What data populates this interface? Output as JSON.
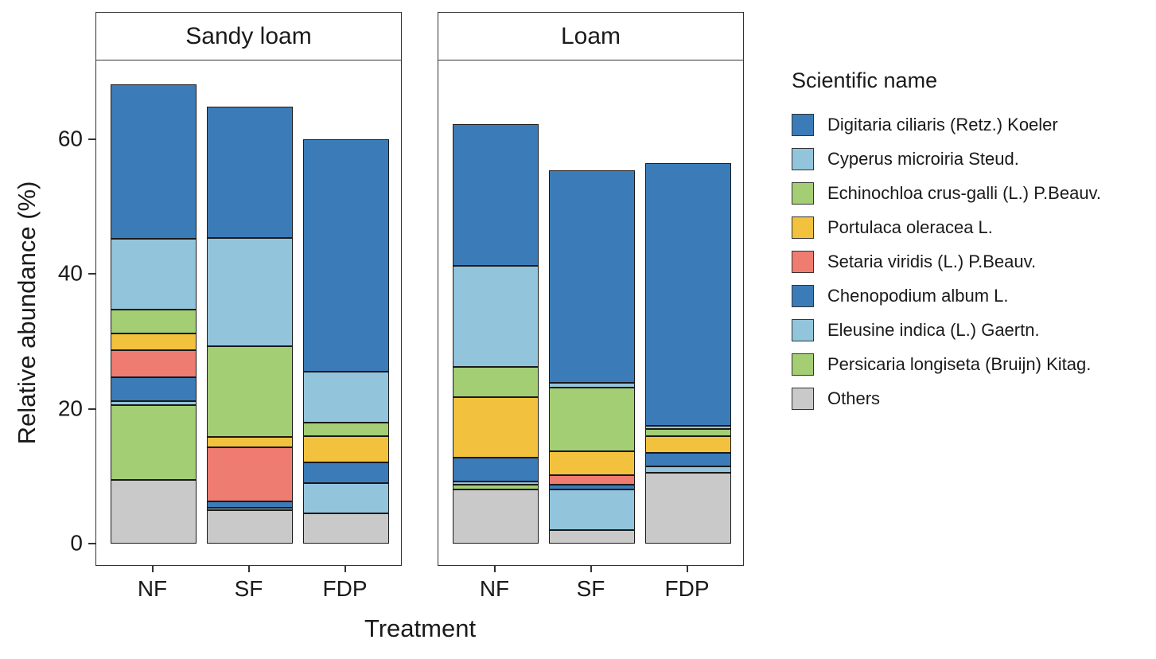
{
  "chart_data": {
    "type": "bar",
    "variant": "stacked-faceted",
    "title": "",
    "xlabel": "Treatment",
    "ylabel": "Relative abundance (%)",
    "ylim": [
      0,
      72
    ],
    "yticks": [
      0,
      20,
      40,
      60
    ],
    "grid": "off",
    "legend_title": "Scientific name",
    "legend_position": "right",
    "facets": [
      {
        "label": "Sandy loam"
      },
      {
        "label": "Loam"
      }
    ],
    "categories": [
      "NF",
      "SF",
      "FDP"
    ],
    "stack_note": "series listed top-of-stack first; bars stack bottom-up in reverse of this order; values indexed [facet][category] in percent",
    "series": [
      {
        "name": "Digitaria ciliaris (Retz.) Koeler",
        "color": "#3B7CB8",
        "values": [
          [
            23.0,
            19.5,
            34.5
          ],
          [
            21.0,
            31.5,
            39.0
          ]
        ]
      },
      {
        "name": "Cyperus microiria Steud.",
        "color": "#92C5DC",
        "values": [
          [
            10.5,
            16.0,
            7.5
          ],
          [
            15.0,
            0.7,
            0.5
          ]
        ]
      },
      {
        "name": "Echinochloa crus-galli (L.) P.Beauv.",
        "color": "#A3CE74",
        "values": [
          [
            3.5,
            13.5,
            2.0
          ],
          [
            4.5,
            9.5,
            1.0
          ]
        ]
      },
      {
        "name": "Portulaca oleracea L.",
        "color": "#F2C23E",
        "values": [
          [
            2.5,
            1.5,
            4.0
          ],
          [
            9.0,
            3.5,
            2.5
          ]
        ]
      },
      {
        "name": "Setaria viridis (L.) P.Beauv.",
        "color": "#EF7C70",
        "values": [
          [
            4.0,
            8.0,
            0.0
          ],
          [
            0.0,
            1.5,
            0.0
          ]
        ]
      },
      {
        "name": "Chenopodium album L.",
        "color": "#3B7CB8",
        "values": [
          [
            3.5,
            1.0,
            3.0
          ],
          [
            3.5,
            0.7,
            2.0
          ]
        ]
      },
      {
        "name": "Eleusine indica (L.) Gaertn.",
        "color": "#92C5DC",
        "values": [
          [
            0.7,
            0.3,
            4.5
          ],
          [
            0.5,
            6.0,
            1.0
          ]
        ]
      },
      {
        "name": "Persicaria longiseta (Bruijn) Kitag.",
        "color": "#A3CE74",
        "values": [
          [
            11.0,
            0.0,
            0.0
          ],
          [
            0.7,
            0.0,
            0.0
          ]
        ]
      },
      {
        "name": "Others",
        "color": "#C9C9C9",
        "values": [
          [
            9.5,
            5.0,
            4.5
          ],
          [
            8.0,
            2.0,
            10.5
          ]
        ]
      }
    ]
  }
}
